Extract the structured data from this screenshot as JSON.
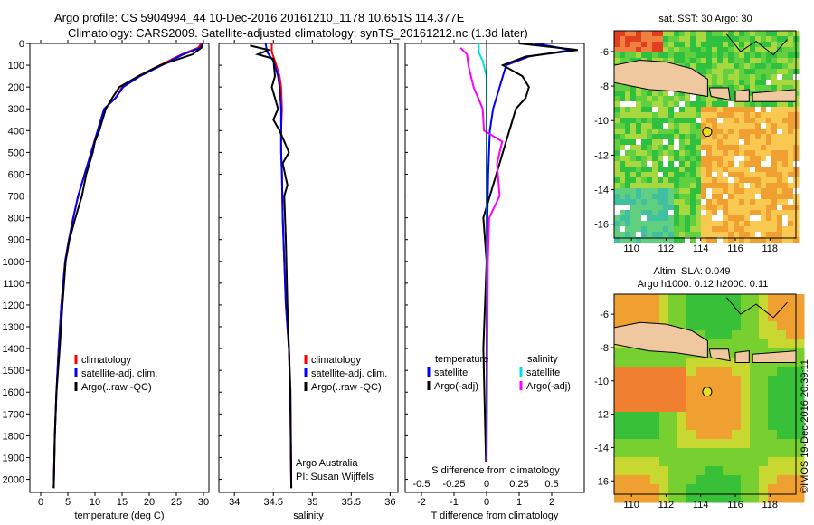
{
  "header": {
    "line1": "Argo profile: CS 5904994_44 10-Dec-2016 20161210_1178 10.651S 114.377E",
    "line2": "Climatology: CARS2009. Satellite-adjusted climatology: synTS_20161212.nc (1.3d later)"
  },
  "credit": "©IMOS 19-Dec-2016 20:39:11",
  "colors": {
    "climatology": "#ff0000",
    "satellite": "#0000ff",
    "argo": "#000000",
    "sal_sat": "#00e0e0",
    "sal_argo": "#ff00ff",
    "land": "#f0c8a0"
  },
  "chart_data": [
    {
      "type": "line",
      "id": "temperature",
      "xlabel": "temperature (deg C)",
      "ylabel": "",
      "xlim": [
        -2,
        31
      ],
      "ylim": [
        2060,
        0
      ],
      "xticks": [
        0,
        5,
        10,
        15,
        20,
        25,
        30
      ],
      "yticks": [
        0,
        100,
        200,
        300,
        400,
        500,
        600,
        700,
        800,
        900,
        1000,
        1100,
        1200,
        1300,
        1400,
        1500,
        1600,
        1700,
        1800,
        1900,
        2000
      ],
      "legend": [
        "climatology",
        "satellite-adj. clim.",
        "Argo(..raw -QC)"
      ],
      "series": [
        {
          "name": "climatology",
          "x": [
            29.6,
            29.0,
            26,
            22,
            18,
            15,
            13.8,
            11.7,
            10.5,
            9.3,
            8.1,
            6.9,
            6.0,
            5.2,
            4.5,
            3.8,
            3.3,
            2.9,
            2.6,
            2.4
          ],
          "y": [
            0,
            20,
            50,
            100,
            150,
            200,
            250,
            300,
            400,
            500,
            600,
            700,
            800,
            900,
            1000,
            1200,
            1400,
            1600,
            1800,
            2040
          ]
        },
        {
          "name": "satellite-adj. clim.",
          "x": [
            29.9,
            29.4,
            26.3,
            22.3,
            18.3,
            15.2,
            13.8,
            11.7,
            10.5,
            9.3,
            8.1,
            6.9,
            6.0,
            5.2,
            4.5,
            3.8,
            3.3,
            2.9,
            2.6,
            2.4
          ],
          "y": [
            0,
            20,
            50,
            100,
            150,
            200,
            250,
            300,
            400,
            500,
            600,
            700,
            800,
            900,
            1000,
            1200,
            1400,
            1600,
            1800,
            2040
          ]
        },
        {
          "name": "Argo(..raw -QC)",
          "x": [
            29.9,
            29.6,
            28,
            22,
            18,
            14.5,
            13.2,
            12,
            10.8,
            10.0,
            9.6,
            8.4,
            7.6,
            6.4,
            5.3,
            4.6,
            4.0,
            3.5,
            2.9,
            2.6,
            2.4
          ],
          "y": [
            5,
            20,
            50,
            100,
            150,
            200,
            250,
            300,
            400,
            450,
            500,
            600,
            700,
            800,
            900,
            1000,
            1200,
            1400,
            1600,
            1800,
            2040
          ]
        }
      ]
    },
    {
      "type": "line",
      "id": "salinity",
      "xlabel": "salinity",
      "xlim": [
        33.8,
        36.1
      ],
      "ylim": [
        2060,
        0
      ],
      "xticks": [
        34,
        34.5,
        35,
        35.5,
        36
      ],
      "legend": [
        "climatology",
        "satellite-adj. clim.",
        "Argo(..raw -QC)"
      ],
      "annotations": [
        "Argo Australia",
        "PI: Susan Wijffels"
      ],
      "series": [
        {
          "name": "climatology",
          "x": [
            34.48,
            34.48,
            34.52,
            34.58,
            34.6,
            34.61,
            34.6,
            34.6,
            34.61,
            34.62,
            34.64,
            34.66,
            34.7,
            34.72,
            34.73
          ],
          "y": [
            0,
            40,
            80,
            150,
            200,
            300,
            400,
            500,
            600,
            800,
            1000,
            1200,
            1400,
            1700,
            2040
          ]
        },
        {
          "name": "satellite-adj. clim.",
          "x": [
            34.4,
            34.42,
            34.5,
            34.56,
            34.58,
            34.6,
            34.6,
            34.6,
            34.61,
            34.62,
            34.64,
            34.66,
            34.7,
            34.72,
            34.73
          ],
          "y": [
            0,
            40,
            80,
            150,
            200,
            300,
            400,
            500,
            600,
            800,
            1000,
            1200,
            1400,
            1700,
            2040
          ]
        },
        {
          "name": "Argo(..raw -QC)",
          "x": [
            34.2,
            34.44,
            34.3,
            34.5,
            34.52,
            34.48,
            34.56,
            34.5,
            34.58,
            34.64,
            34.7,
            34.62,
            34.68,
            34.64,
            34.66,
            34.68,
            34.72,
            34.73
          ],
          "y": [
            10,
            30,
            50,
            70,
            150,
            200,
            300,
            350,
            400,
            450,
            500,
            550,
            650,
            700,
            900,
            1200,
            1600,
            2040
          ]
        }
      ]
    },
    {
      "type": "line",
      "id": "difference",
      "xlabel": "T difference from climatology",
      "xlabel_top": "S difference from climatology",
      "xlim": [
        -2.5,
        3
      ],
      "ylim": [
        2060,
        0
      ],
      "xticks": [
        -2,
        -1,
        0,
        1,
        2
      ],
      "xticks_top": [
        -0.5,
        -0.25,
        0,
        0.25,
        0.5
      ],
      "legend_left_title": "temperature",
      "legend_right_title": "salinity",
      "legend": [
        "satellite",
        "Argo(-adj)",
        "satellite",
        "Argo(-adj)"
      ],
      "series": [
        {
          "name": "T satellite",
          "x": [
            1.5,
            2.6,
            1.3,
            0.6,
            0.4,
            0.2,
            0.1,
            0.05,
            0,
            0
          ],
          "y": [
            0,
            30,
            60,
            100,
            200,
            300,
            400,
            600,
            1000,
            2040
          ]
        },
        {
          "name": "T Argo(-adj)",
          "x": [
            1.0,
            2.8,
            1.2,
            0.5,
            1.1,
            1.3,
            1.2,
            0.9,
            0.7,
            0.5,
            0.3,
            0.1,
            -0.1,
            0,
            -0.1,
            0
          ],
          "y": [
            0,
            30,
            60,
            100,
            150,
            200,
            250,
            300,
            400,
            500,
            600,
            700,
            800,
            1000,
            1400,
            2040
          ]
        },
        {
          "name": "S satellite",
          "x": [
            -0.06,
            -0.06,
            -0.03,
            0,
            0,
            0,
            0
          ],
          "y": [
            0,
            40,
            80,
            150,
            300,
            600,
            2040
          ]
        },
        {
          "name": "S Argo(-adj)",
          "x": [
            -0.2,
            -0.15,
            -0.14,
            -0.1,
            -0.03,
            -0.02,
            0.12,
            0.08,
            0.1,
            0.02,
            0.01,
            0
          ],
          "y": [
            20,
            50,
            100,
            200,
            300,
            400,
            450,
            550,
            700,
            800,
            1000,
            2040
          ]
        }
      ]
    },
    {
      "type": "heatmap",
      "id": "sst-map",
      "title": "sat. SST: 30 Argo: 30",
      "xticks": [
        110,
        112,
        114,
        116,
        118
      ],
      "yticks": [
        -6,
        -8,
        -10,
        -12,
        -14,
        -16
      ],
      "xlim": [
        109,
        119.5
      ],
      "ylim": [
        -16.8,
        -4.8
      ],
      "marker": {
        "lon": 114.377,
        "lat": -10.651
      }
    },
    {
      "type": "heatmap",
      "id": "sla-map",
      "title": "Altim. SLA: 0.049",
      "subtitle": "Argo h1000: 0.12 h2000: 0.11",
      "xticks": [
        110,
        112,
        114,
        116,
        118
      ],
      "yticks": [
        -6,
        -8,
        -10,
        -12,
        -14,
        -16
      ],
      "xlim": [
        109,
        119.5
      ],
      "ylim": [
        -16.8,
        -4.8
      ],
      "marker": {
        "lon": 114.377,
        "lat": -10.651
      }
    }
  ]
}
